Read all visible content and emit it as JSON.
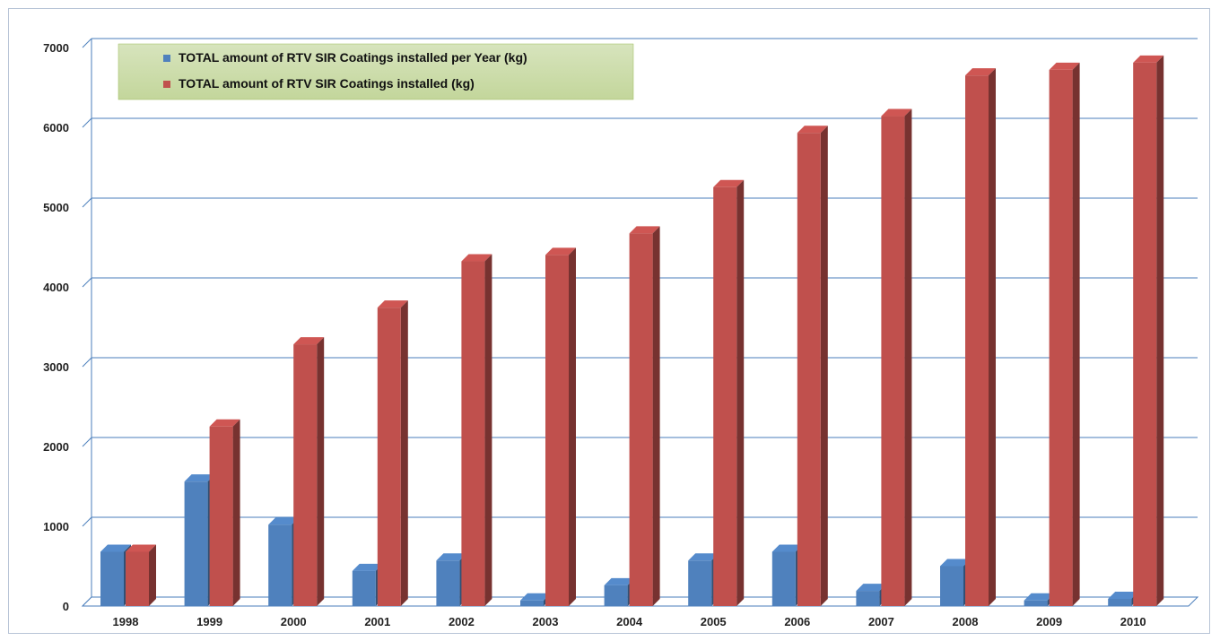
{
  "chart_data": {
    "type": "bar",
    "title": "",
    "xlabel": "",
    "ylabel": "",
    "categories": [
      "1998",
      "1999",
      "2000",
      "2001",
      "2002",
      "2003",
      "2004",
      "2005",
      "2006",
      "2007",
      "2008",
      "2009",
      "2010"
    ],
    "series": [
      {
        "name": "TOTAL amount of RTV SIR Coatings installed per Year (kg)",
        "color": "#4f81bd",
        "values": [
          680,
          1560,
          1020,
          440,
          570,
          70,
          260,
          570,
          680,
          190,
          500,
          70,
          90
        ]
      },
      {
        "name": "TOTAL amount of RTV SIR Coatings installed (kg)",
        "color": "#c0504d",
        "values": [
          680,
          2250,
          3280,
          3740,
          4320,
          4400,
          4670,
          5250,
          5930,
          6140,
          6650,
          6720,
          6810
        ]
      }
    ],
    "ylim": [
      0,
      7000
    ],
    "yticks": [
      0,
      1000,
      2000,
      3000,
      4000,
      5000,
      6000,
      7000
    ],
    "grid": true,
    "legend_position": "top-left",
    "style": "3d-clustered-column"
  }
}
